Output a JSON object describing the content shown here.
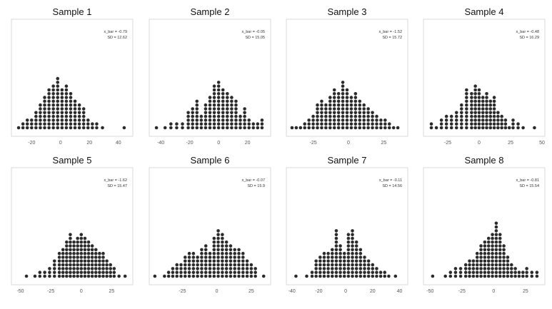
{
  "chart_data": [
    {
      "type": "dotplot",
      "title": "Sample 1",
      "ticks": [
        -20,
        0,
        20,
        40
      ],
      "xlim": [
        -32,
        48
      ],
      "stats": [
        "x_bar = -0.79",
        "SD = 12.62"
      ],
      "x": [
        -29,
        -26,
        -23,
        -20,
        -17,
        -14,
        -11,
        -8,
        -5,
        -2,
        1,
        4,
        7,
        10,
        13,
        16,
        19,
        22,
        25,
        29,
        44
      ],
      "counts": [
        1,
        2,
        3,
        3,
        5,
        7,
        9,
        11,
        12,
        14,
        11,
        12,
        10,
        8,
        7,
        6,
        3,
        2,
        2,
        1,
        1
      ]
    },
    {
      "type": "dotplot",
      "title": "Sample 2",
      "ticks": [
        -40,
        -20,
        0,
        20
      ],
      "xlim": [
        -46,
        34
      ],
      "stats": [
        "x_bar = -0.05",
        "SD = 15.05"
      ],
      "x": [
        -43,
        -37,
        -33,
        -29,
        -25,
        -21,
        -18,
        -15,
        -12,
        -9,
        -6,
        -3,
        0,
        3,
        6,
        9,
        12,
        15,
        18,
        21,
        24,
        27,
        30
      ],
      "counts": [
        1,
        1,
        2,
        2,
        2,
        5,
        6,
        8,
        4,
        7,
        9,
        12,
        13,
        11,
        10,
        9,
        8,
        4,
        6,
        3,
        2,
        2,
        3
      ]
    },
    {
      "type": "dotplot",
      "title": "Sample 3",
      "ticks": [
        -25,
        0,
        25
      ],
      "xlim": [
        -42,
        40
      ],
      "stats": [
        "x_bar = -1.52",
        "SD = 15.72"
      ],
      "x": [
        -40,
        -37,
        -34,
        -31,
        -28,
        -25,
        -22,
        -19,
        -16,
        -13,
        -10,
        -7,
        -4,
        -1,
        2,
        5,
        8,
        11,
        14,
        17,
        20,
        23,
        26,
        29,
        32,
        35
      ],
      "counts": [
        1,
        1,
        1,
        2,
        3,
        4,
        7,
        8,
        7,
        9,
        11,
        10,
        13,
        11,
        9,
        10,
        8,
        7,
        6,
        5,
        4,
        3,
        3,
        2,
        1,
        1
      ]
    },
    {
      "type": "dotplot",
      "title": "Sample 4",
      "ticks": [
        -25,
        0,
        25,
        50
      ],
      "xlim": [
        -42,
        50
      ],
      "stats": [
        "x_bar = -0.48",
        "SD = 16.29"
      ],
      "x": [
        -38,
        -34,
        -30,
        -26,
        -22,
        -18,
        -14,
        -10,
        -6,
        -3,
        0,
        3,
        6,
        9,
        12,
        15,
        18,
        21,
        24,
        27,
        31,
        35,
        44
      ],
      "counts": [
        2,
        1,
        3,
        4,
        4,
        5,
        7,
        11,
        10,
        12,
        11,
        9,
        10,
        8,
        9,
        5,
        4,
        3,
        1,
        3,
        2,
        1,
        1
      ]
    },
    {
      "type": "dotplot",
      "title": "Sample 5",
      "ticks": [
        -50,
        -25,
        0,
        25
      ],
      "xlim": [
        -55,
        40
      ],
      "stats": [
        "x_bar = -1.62",
        "SD = 15.47"
      ],
      "x": [
        -45,
        -38,
        -34,
        -30,
        -26,
        -22,
        -18,
        -15,
        -12,
        -9,
        -6,
        -3,
        0,
        3,
        6,
        9,
        12,
        15,
        18,
        21,
        24,
        27,
        31,
        36
      ],
      "counts": [
        1,
        1,
        2,
        2,
        3,
        5,
        7,
        8,
        10,
        12,
        10,
        11,
        12,
        11,
        10,
        9,
        8,
        7,
        7,
        5,
        4,
        3,
        1,
        1
      ]
    },
    {
      "type": "dotplot",
      "title": "Sample 6",
      "ticks": [
        -25,
        0,
        25
      ],
      "xlim": [
        -47,
        37
      ],
      "stats": [
        "x_bar = -0.07",
        "SD = 15.9"
      ],
      "x": [
        -45,
        -38,
        -35,
        -32,
        -29,
        -26,
        -23,
        -20,
        -17,
        -14,
        -11,
        -8,
        -5,
        -2,
        1,
        4,
        7,
        10,
        13,
        16,
        19,
        22,
        25,
        28,
        34
      ],
      "counts": [
        1,
        1,
        2,
        3,
        4,
        4,
        6,
        7,
        7,
        6,
        8,
        9,
        7,
        11,
        13,
        12,
        10,
        9,
        8,
        8,
        7,
        5,
        4,
        3,
        1
      ]
    },
    {
      "type": "dotplot",
      "title": "Sample 7",
      "ticks": [
        -40,
        -20,
        0,
        20,
        40
      ],
      "xlim": [
        -42,
        44
      ],
      "stats": [
        "x_bar = -0.11",
        "SD = 14.56"
      ],
      "x": [
        -37,
        -29,
        -25,
        -22,
        -19,
        -16,
        -13,
        -10,
        -7,
        -4,
        -1,
        2,
        5,
        8,
        11,
        14,
        17,
        20,
        23,
        26,
        29,
        32,
        37
      ],
      "counts": [
        1,
        1,
        2,
        5,
        6,
        7,
        7,
        8,
        13,
        9,
        7,
        12,
        13,
        10,
        8,
        6,
        5,
        4,
        3,
        2,
        2,
        1,
        1
      ]
    },
    {
      "type": "dotplot",
      "title": "Sample 8",
      "ticks": [
        -50,
        -25,
        0,
        25
      ],
      "xlim": [
        -53,
        38
      ],
      "stats": [
        "x_bar = -0.81",
        "SD = 15.54"
      ],
      "x": [
        -48,
        -38,
        -34,
        -30,
        -26,
        -22,
        -19,
        -16,
        -13,
        -10,
        -7,
        -4,
        -1,
        2,
        5,
        8,
        11,
        14,
        17,
        20,
        23,
        26,
        30,
        34
      ],
      "counts": [
        1,
        1,
        2,
        3,
        3,
        4,
        5,
        5,
        7,
        9,
        10,
        11,
        12,
        15,
        12,
        9,
        6,
        4,
        3,
        2,
        2,
        3,
        2,
        2
      ]
    }
  ]
}
